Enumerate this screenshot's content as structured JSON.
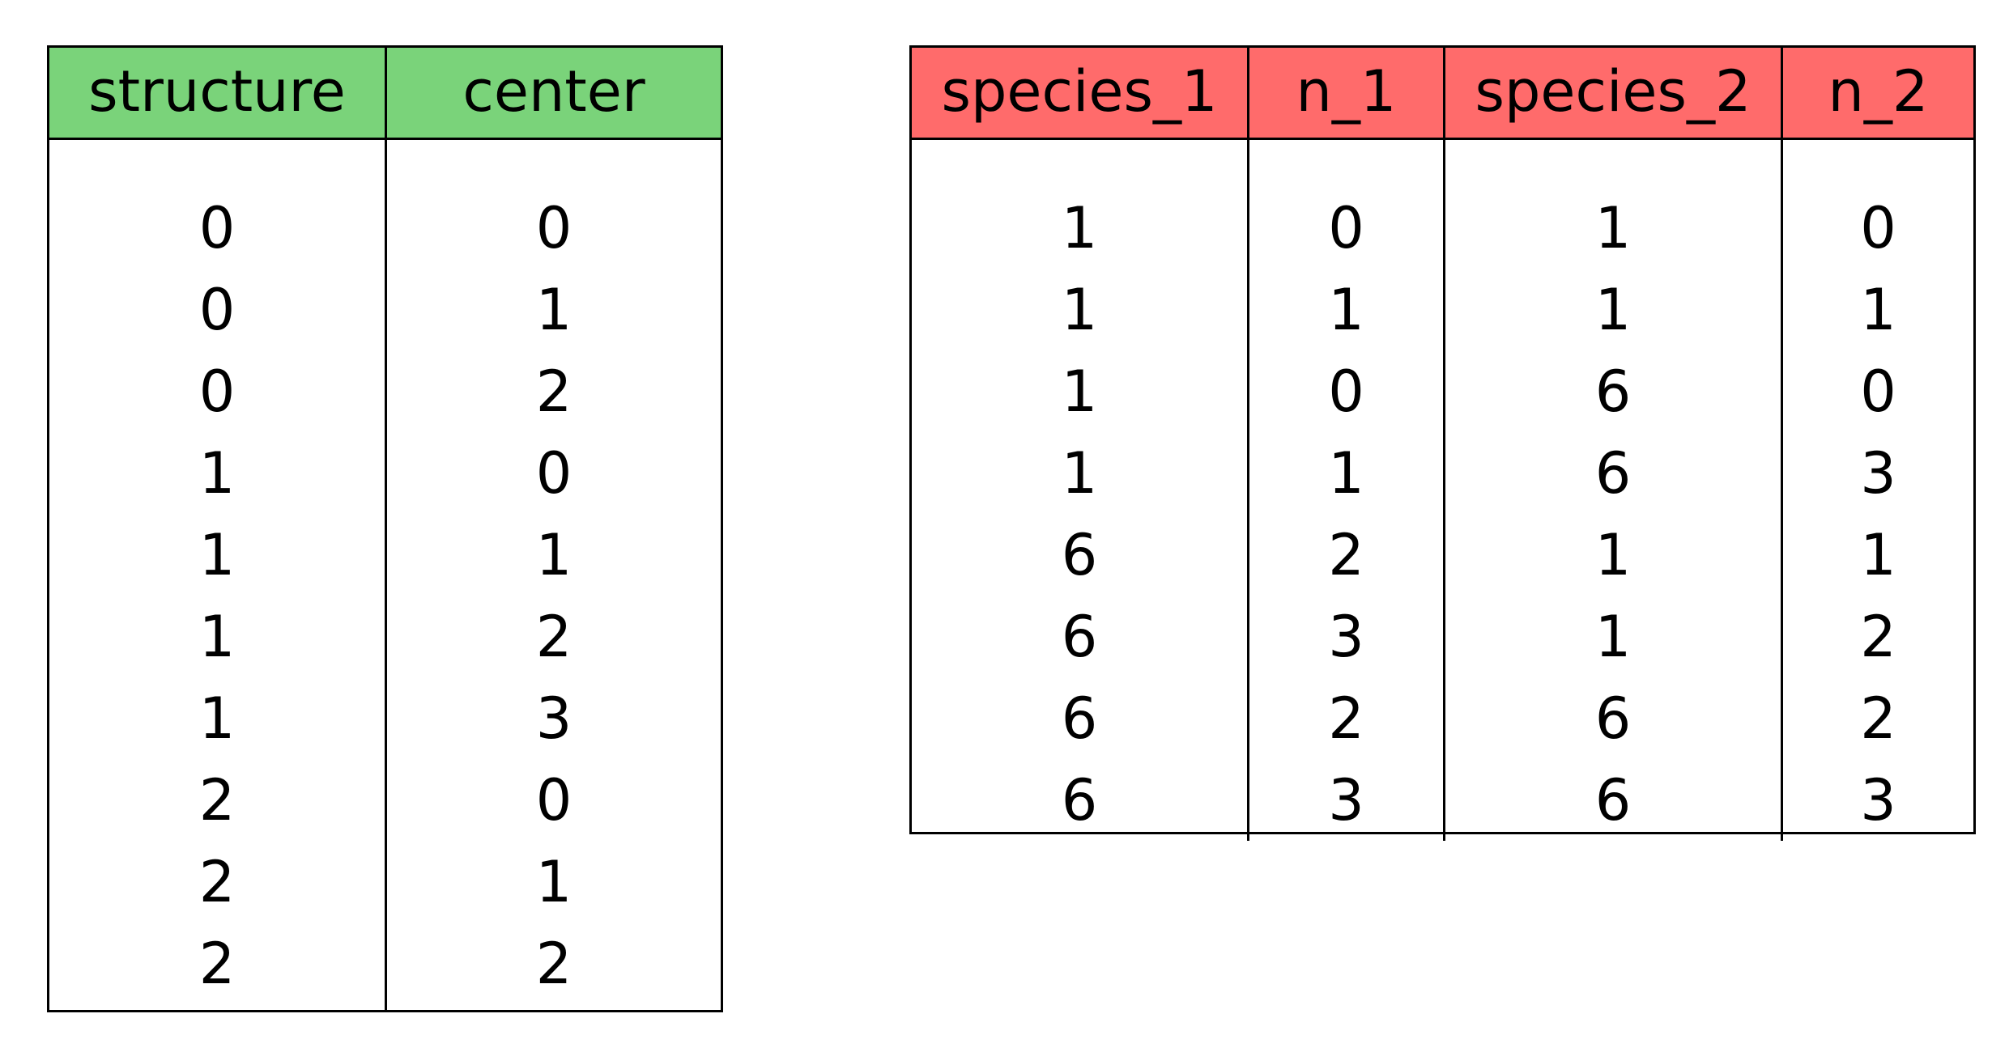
{
  "tables": [
    {
      "header_color": "#7ad37a",
      "columns": [
        {
          "header": "structure",
          "values": [
            "0",
            "0",
            "0",
            "1",
            "1",
            "1",
            "1",
            "2",
            "2",
            "2"
          ]
        },
        {
          "header": "center",
          "values": [
            "0",
            "1",
            "2",
            "0",
            "1",
            "2",
            "3",
            "0",
            "1",
            "2"
          ]
        }
      ]
    },
    {
      "header_color": "#ff6b6b",
      "columns": [
        {
          "header": "species_1",
          "values": [
            "1",
            "1",
            "1",
            "1",
            "6",
            "6",
            "6",
            "6"
          ]
        },
        {
          "header": "n_1",
          "values": [
            "0",
            "1",
            "0",
            "1",
            "2",
            "3",
            "2",
            "3"
          ]
        },
        {
          "header": "species_2",
          "values": [
            "1",
            "1",
            "6",
            "6",
            "1",
            "1",
            "6",
            "6"
          ]
        },
        {
          "header": "n_2",
          "values": [
            "0",
            "1",
            "0",
            "3",
            "1",
            "2",
            "2",
            "3"
          ]
        }
      ]
    }
  ]
}
